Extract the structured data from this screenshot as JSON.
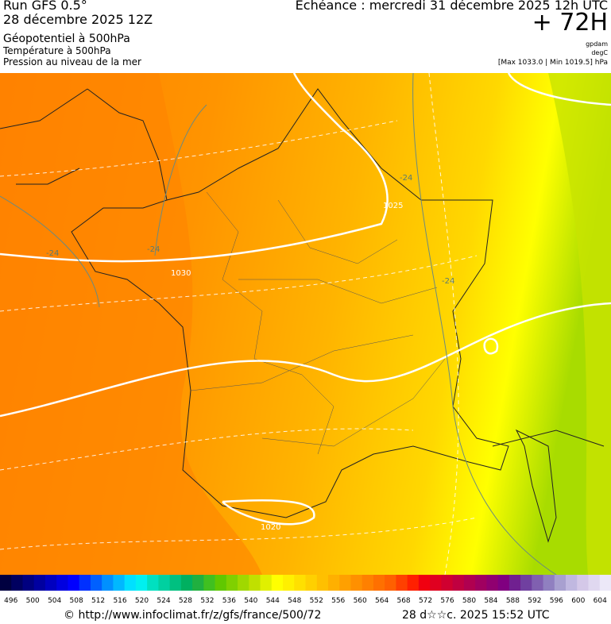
{
  "header": {
    "run": "Run GFS 0.5°",
    "run_date": "28 décembre 2025 12Z",
    "field_1": "Géopotentiel à 500hPa",
    "field_2": "Température à 500hPa",
    "field_3": "Pression au niveau de la mer",
    "forecast": "Echéance : mercredi 31 décembre 2025 12h UTC",
    "lead": "+ 72H",
    "unit_1": "gpdam",
    "unit_2": "degC",
    "range": "[Max 1033.0 | Min 1019.5] hPa"
  },
  "map": {
    "labels": [
      "-24",
      "1030",
      "-24",
      "1025",
      "-24",
      "-24",
      "1020"
    ]
  },
  "colorbar": {
    "ticks": [
      496,
      500,
      504,
      508,
      512,
      516,
      520,
      524,
      528,
      532,
      536,
      540,
      544,
      548,
      552,
      556,
      560,
      564,
      568,
      572,
      576,
      580,
      584,
      588,
      592,
      596,
      600,
      604
    ],
    "colors": [
      "#000040",
      "#000060",
      "#000080",
      "#0000a0",
      "#0000c0",
      "#0000e0",
      "#0000ff",
      "#0030ff",
      "#0060ff",
      "#0090ff",
      "#00b8ff",
      "#00e0ff",
      "#00f0f0",
      "#00e0c0",
      "#00d0a0",
      "#00c080",
      "#00b060",
      "#20b040",
      "#40c020",
      "#60c800",
      "#80d000",
      "#a0d800",
      "#c0e000",
      "#e0f000",
      "#ffff00",
      "#fff000",
      "#ffe000",
      "#ffd000",
      "#ffc000",
      "#ffb000",
      "#ffa000",
      "#ff9000",
      "#ff8000",
      "#ff7000",
      "#ff6000",
      "#ff4000",
      "#ff2000",
      "#f00010",
      "#e00020",
      "#d00030",
      "#c00040",
      "#b00050",
      "#a00060",
      "#900070",
      "#800080",
      "#702090",
      "#7040a0",
      "#8060b0",
      "#9080c0",
      "#a8a0d0",
      "#c0b8e0",
      "#d4c8e8",
      "#e0d8f0",
      "#ece8f8"
    ]
  },
  "footer": {
    "url": "© http://www.infoclimat.fr/z/gfs/france/500/72",
    "timestamp": "28 d☆☆c. 2025 15:52 UTC"
  }
}
